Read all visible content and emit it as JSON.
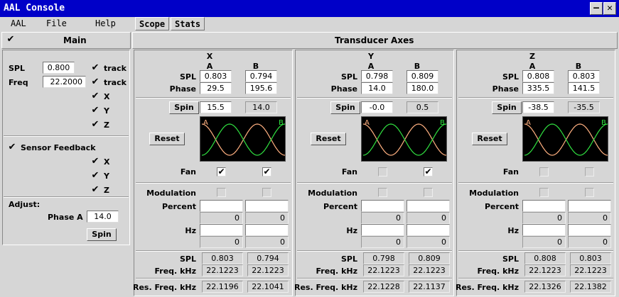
{
  "window": {
    "title": "AAL Console",
    "minimize_glyph": "—",
    "close_glyph": "✕"
  },
  "menu": {
    "items": [
      "AAL",
      "File",
      "Help"
    ],
    "tabs": [
      "Scope",
      "Stats"
    ]
  },
  "main": {
    "title": "Main",
    "spl_label": "SPL",
    "spl_value": "0.800",
    "freq_label": "Freq",
    "freq_value": "22.2000",
    "track_label": "track",
    "axis_labels": [
      "X",
      "Y",
      "Z"
    ],
    "sensor_feedback_label": "Sensor Feedback",
    "adjust_label": "Adjust:",
    "phase_a_label": "Phase A",
    "phase_a_value": "14.0",
    "spin_label": "Spin"
  },
  "transducer": {
    "title": "Transducer Axes",
    "col_a": "A",
    "col_b": "B",
    "labels": {
      "spl": "SPL",
      "phase": "Phase",
      "spin": "Spin",
      "reset": "Reset",
      "fan": "Fan",
      "modulation": "Modulation",
      "percent": "Percent",
      "hz": "Hz",
      "out_spl": "SPL",
      "freq_khz": "Freq. kHz",
      "res_freq_khz": "Res. Freq. kHz"
    },
    "axes": [
      {
        "name": "X",
        "spl_a": "0.803",
        "spl_b": "0.794",
        "phase_a": "29.5",
        "phase_b": "195.6",
        "spin_a": "15.5",
        "spin_b": "14.0",
        "fan_a": true,
        "fan_b": true,
        "pct_a": "0",
        "pct_b": "0",
        "hz_a": "0",
        "hz_b": "0",
        "out_spl_a": "0.803",
        "out_spl_b": "0.794",
        "freq_a": "22.1223",
        "freq_b": "22.1223",
        "res_a": "22.1196",
        "res_b": "22.1041"
      },
      {
        "name": "Y",
        "spl_a": "0.798",
        "spl_b": "0.809",
        "phase_a": "14.0",
        "phase_b": "180.0",
        "spin_a": "-0.0",
        "spin_b": "0.5",
        "fan_a": false,
        "fan_b": true,
        "pct_a": "0",
        "pct_b": "0",
        "hz_a": "0",
        "hz_b": "0",
        "out_spl_a": "0.798",
        "out_spl_b": "0.809",
        "freq_a": "22.1223",
        "freq_b": "22.1223",
        "res_a": "22.1228",
        "res_b": "22.1137"
      },
      {
        "name": "Z",
        "spl_a": "0.808",
        "spl_b": "0.803",
        "phase_a": "335.5",
        "phase_b": "141.5",
        "spin_a": "-38.5",
        "spin_b": "-35.5",
        "fan_a": false,
        "fan_b": false,
        "pct_a": "0",
        "pct_b": "0",
        "hz_a": "0",
        "hz_b": "0",
        "out_spl_a": "0.808",
        "out_spl_b": "0.803",
        "freq_a": "22.1223",
        "freq_b": "22.1223",
        "res_a": "22.1326",
        "res_b": "22.1382"
      }
    ],
    "scope": {
      "label_a": "A",
      "label_b": "B",
      "color_a": "#ffb080",
      "color_b": "#30e040",
      "label_color": "#e8e8a0"
    }
  }
}
